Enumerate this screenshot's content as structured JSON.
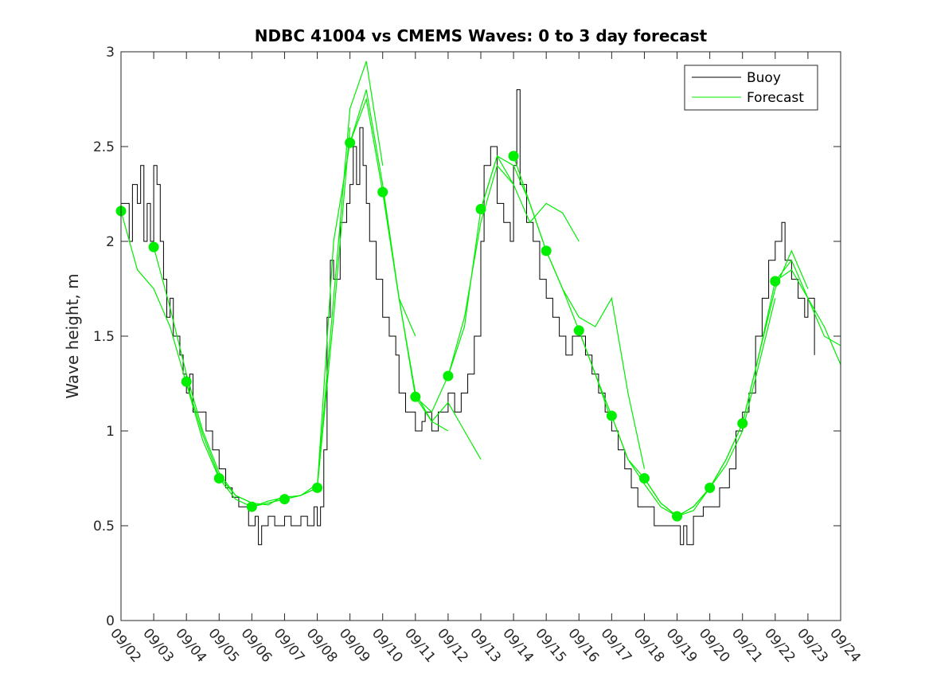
{
  "chart_data": {
    "type": "line",
    "title": "NDBC 41004 vs CMEMS Waves: 0 to 3 day forecast",
    "xlabel": "",
    "ylabel": "Wave height, m",
    "x_tick_labels": [
      "09/02",
      "09/03",
      "09/04",
      "09/05",
      "09/06",
      "09/07",
      "09/08",
      "09/09",
      "09/10",
      "09/11",
      "09/12",
      "09/13",
      "09/14",
      "09/15",
      "09/16",
      "09/17",
      "09/18",
      "09/19",
      "09/20",
      "09/21",
      "09/22",
      "09/23",
      "09/24"
    ],
    "x_units": "days since 09/02",
    "xlim": [
      0,
      22
    ],
    "y_ticks": [
      0,
      0.5,
      1,
      1.5,
      2,
      2.5,
      3
    ],
    "y_tick_labels": [
      "0",
      "0.5",
      "1",
      "1.5",
      "2",
      "2.5",
      "3"
    ],
    "ylim": [
      0,
      3
    ],
    "grid": false,
    "legend": {
      "placement": "top-right",
      "entries": [
        "Buoy",
        "Forecast"
      ]
    },
    "colors": {
      "buoy": "#000000",
      "forecast": "#00ee00"
    },
    "buoy": [
      [
        0,
        2.2
      ],
      [
        0.25,
        2.0
      ],
      [
        0.35,
        2.3
      ],
      [
        0.5,
        2.2
      ],
      [
        0.6,
        2.4
      ],
      [
        0.7,
        2.0
      ],
      [
        0.8,
        2.2
      ],
      [
        0.9,
        2.0
      ],
      [
        1.0,
        2.4
      ],
      [
        1.1,
        2.3
      ],
      [
        1.2,
        2.0
      ],
      [
        1.3,
        1.8
      ],
      [
        1.4,
        1.6
      ],
      [
        1.5,
        1.7
      ],
      [
        1.6,
        1.5
      ],
      [
        1.8,
        1.4
      ],
      [
        1.9,
        1.3
      ],
      [
        2.0,
        1.2
      ],
      [
        2.1,
        1.3
      ],
      [
        2.2,
        1.1
      ],
      [
        2.4,
        1.1
      ],
      [
        2.6,
        1.0
      ],
      [
        2.8,
        0.9
      ],
      [
        3.0,
        0.8
      ],
      [
        3.2,
        0.7
      ],
      [
        3.4,
        0.65
      ],
      [
        3.6,
        0.6
      ],
      [
        3.8,
        0.6
      ],
      [
        3.9,
        0.5
      ],
      [
        4.1,
        0.55
      ],
      [
        4.2,
        0.4
      ],
      [
        4.3,
        0.5
      ],
      [
        4.5,
        0.55
      ],
      [
        4.7,
        0.5
      ],
      [
        5.0,
        0.55
      ],
      [
        5.2,
        0.5
      ],
      [
        5.5,
        0.55
      ],
      [
        5.7,
        0.5
      ],
      [
        5.9,
        0.6
      ],
      [
        6.0,
        0.5
      ],
      [
        6.1,
        0.6
      ],
      [
        6.2,
        0.9
      ],
      [
        6.3,
        1.6
      ],
      [
        6.4,
        1.9
      ],
      [
        6.5,
        1.8
      ],
      [
        6.7,
        2.1
      ],
      [
        6.9,
        2.2
      ],
      [
        7.0,
        2.3
      ],
      [
        7.1,
        2.5
      ],
      [
        7.2,
        2.3
      ],
      [
        7.3,
        2.6
      ],
      [
        7.4,
        2.4
      ],
      [
        7.5,
        2.2
      ],
      [
        7.6,
        2.0
      ],
      [
        7.8,
        1.8
      ],
      [
        8.0,
        1.6
      ],
      [
        8.2,
        1.5
      ],
      [
        8.4,
        1.4
      ],
      [
        8.5,
        1.2
      ],
      [
        8.7,
        1.1
      ],
      [
        9.0,
        1.0
      ],
      [
        9.2,
        1.05
      ],
      [
        9.3,
        1.1
      ],
      [
        9.5,
        1.0
      ],
      [
        9.7,
        1.1
      ],
      [
        10.0,
        1.2
      ],
      [
        10.2,
        1.1
      ],
      [
        10.4,
        1.2
      ],
      [
        10.6,
        1.3
      ],
      [
        10.8,
        1.5
      ],
      [
        11.0,
        2.0
      ],
      [
        11.1,
        2.4
      ],
      [
        11.3,
        2.5
      ],
      [
        11.5,
        2.2
      ],
      [
        11.7,
        2.1
      ],
      [
        11.9,
        2.0
      ],
      [
        12.0,
        2.4
      ],
      [
        12.1,
        2.8
      ],
      [
        12.2,
        2.3
      ],
      [
        12.4,
        2.1
      ],
      [
        12.6,
        2.0
      ],
      [
        12.8,
        1.8
      ],
      [
        13.0,
        1.7
      ],
      [
        13.2,
        1.6
      ],
      [
        13.4,
        1.5
      ],
      [
        13.6,
        1.4
      ],
      [
        13.8,
        1.5
      ],
      [
        14.0,
        1.5
      ],
      [
        14.2,
        1.4
      ],
      [
        14.4,
        1.3
      ],
      [
        14.6,
        1.2
      ],
      [
        14.8,
        1.1
      ],
      [
        15.0,
        1.0
      ],
      [
        15.2,
        0.9
      ],
      [
        15.4,
        0.8
      ],
      [
        15.6,
        0.7
      ],
      [
        15.8,
        0.6
      ],
      [
        16.0,
        0.6
      ],
      [
        16.3,
        0.5
      ],
      [
        16.6,
        0.5
      ],
      [
        17.0,
        0.5
      ],
      [
        17.1,
        0.4
      ],
      [
        17.2,
        0.5
      ],
      [
        17.3,
        0.4
      ],
      [
        17.5,
        0.55
      ],
      [
        17.8,
        0.6
      ],
      [
        18.0,
        0.6
      ],
      [
        18.3,
        0.7
      ],
      [
        18.6,
        0.8
      ],
      [
        18.8,
        1.0
      ],
      [
        19.0,
        1.1
      ],
      [
        19.2,
        1.2
      ],
      [
        19.4,
        1.5
      ],
      [
        19.6,
        1.7
      ],
      [
        19.8,
        1.9
      ],
      [
        20.0,
        2.0
      ],
      [
        20.2,
        2.1
      ],
      [
        20.3,
        1.9
      ],
      [
        20.5,
        1.8
      ],
      [
        20.7,
        1.7
      ],
      [
        20.9,
        1.6
      ],
      [
        21.0,
        1.7
      ],
      [
        21.2,
        1.4
      ]
    ],
    "forecast_runs": [
      {
        "start": 0,
        "step": 0.5,
        "values": [
          2.16,
          1.85,
          1.75,
          1.55,
          1.25,
          0.95,
          0.75
        ]
      },
      {
        "start": 1,
        "step": 0.5,
        "values": [
          1.97,
          1.65,
          1.3,
          1.0,
          0.78,
          0.66,
          0.62
        ]
      },
      {
        "start": 2,
        "step": 0.5,
        "values": [
          1.26,
          0.98,
          0.76,
          0.66,
          0.62,
          0.61,
          0.66
        ]
      },
      {
        "start": 3,
        "step": 0.5,
        "values": [
          0.75,
          0.64,
          0.6,
          0.63,
          0.65,
          0.66,
          0.72
        ]
      },
      {
        "start": 4,
        "step": 0.5,
        "values": [
          0.6,
          0.62,
          0.64,
          0.66,
          0.7,
          1.6,
          2.6
        ]
      },
      {
        "start": 5,
        "step": 0.5,
        "values": [
          0.64,
          0.66,
          0.7,
          1.7,
          2.7,
          2.95,
          2.4
        ]
      },
      {
        "start": 6,
        "step": 0.5,
        "values": [
          0.7,
          2.0,
          2.52,
          2.8,
          2.3,
          1.7,
          1.5
        ]
      },
      {
        "start": 7,
        "step": 0.5,
        "values": [
          2.52,
          2.75,
          2.26,
          1.7,
          1.2,
          1.05,
          1.0
        ]
      },
      {
        "start": 8,
        "step": 0.5,
        "values": [
          2.26,
          1.7,
          1.18,
          1.05,
          1.15,
          1.0,
          0.85
        ]
      },
      {
        "start": 9,
        "step": 0.5,
        "values": [
          1.18,
          1.1,
          1.29,
          1.6,
          2.1,
          2.4,
          2.3
        ]
      },
      {
        "start": 10,
        "step": 0.5,
        "values": [
          1.29,
          1.55,
          2.17,
          2.45,
          2.4,
          2.2,
          1.95
        ]
      },
      {
        "start": 11,
        "step": 0.5,
        "values": [
          2.17,
          2.45,
          2.3,
          2.1,
          2.2,
          2.15,
          2.0
        ]
      },
      {
        "start": 12,
        "step": 0.5,
        "values": [
          2.45,
          2.2,
          1.95,
          1.75,
          1.53,
          1.3,
          1.05
        ]
      },
      {
        "start": 13,
        "step": 0.5,
        "values": [
          1.95,
          1.75,
          1.6,
          1.55,
          1.7,
          1.2,
          0.8
        ]
      },
      {
        "start": 14,
        "step": 0.5,
        "values": [
          1.53,
          1.3,
          1.08,
          0.85,
          0.72,
          0.6,
          0.55
        ]
      },
      {
        "start": 15,
        "step": 0.5,
        "values": [
          1.08,
          0.85,
          0.75,
          0.62,
          0.55,
          0.6,
          0.7
        ]
      },
      {
        "start": 16,
        "step": 0.5,
        "values": [
          0.75,
          0.62,
          0.55,
          0.6,
          0.7,
          0.85,
          1.04
        ]
      },
      {
        "start": 17,
        "step": 0.5,
        "values": [
          0.55,
          0.58,
          0.7,
          0.82,
          1.0,
          1.35,
          1.7
        ]
      },
      {
        "start": 18,
        "step": 0.5,
        "values": [
          0.7,
          0.85,
          1.04,
          1.4,
          1.75,
          1.95,
          1.75
        ]
      },
      {
        "start": 19,
        "step": 0.5,
        "values": [
          1.04,
          1.4,
          1.79,
          1.9,
          1.7,
          1.5,
          1.45
        ]
      },
      {
        "start": 20,
        "step": 0.5,
        "values": [
          1.79,
          1.85,
          1.7,
          1.55,
          1.35,
          1.3,
          1.28
        ]
      }
    ],
    "forecast_start_markers": [
      [
        0,
        2.16
      ],
      [
        1,
        1.97
      ],
      [
        2,
        1.26
      ],
      [
        3,
        0.75
      ],
      [
        4,
        0.6
      ],
      [
        5,
        0.64
      ],
      [
        6,
        0.7
      ],
      [
        7,
        2.52
      ],
      [
        8,
        2.26
      ],
      [
        9,
        1.18
      ],
      [
        10,
        1.29
      ],
      [
        11,
        2.17
      ],
      [
        12,
        2.45
      ],
      [
        13,
        1.95
      ],
      [
        14,
        1.53
      ],
      [
        15,
        1.08
      ],
      [
        16,
        0.75
      ],
      [
        17,
        0.55
      ],
      [
        18,
        0.7
      ],
      [
        19,
        1.04
      ],
      [
        20,
        1.79
      ]
    ]
  }
}
